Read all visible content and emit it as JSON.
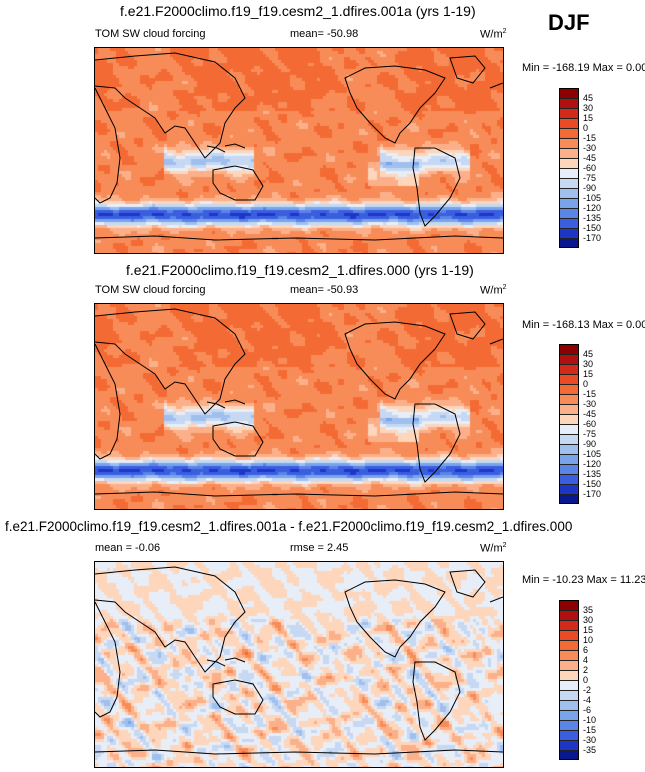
{
  "season": "DJF",
  "panels": [
    {
      "title": "f.e21.F2000climo.f19_f19.cesm2_1.dfires.001a (yrs 1-19)",
      "left_label": "TOM SW cloud forcing",
      "mean_label": "mean= -50.98",
      "units_base": "W/m",
      "units_exp": "2",
      "minmax": "Min = -168.19 Max =   0.00",
      "colorbar": {
        "ticks": [
          "45",
          "30",
          "15",
          "0",
          "-15",
          "-30",
          "-45",
          "-60",
          "-75",
          "-90",
          "-105",
          "-120",
          "-135",
          "-150",
          "-170"
        ],
        "colors": [
          "#8b0000",
          "#b01010",
          "#d42a1a",
          "#ea4a24",
          "#f46a34",
          "#f88c58",
          "#fbb08a",
          "#fdd6bc",
          "#e8eef8",
          "#c6d8f2",
          "#9fbfee",
          "#7aa4ea",
          "#5a84e6",
          "#3a5ee0",
          "#1e36c8",
          "#0a1890"
        ]
      },
      "field": "full"
    },
    {
      "title": "f.e21.F2000climo.f19_f19.cesm2_1.dfires.000 (yrs 1-19)",
      "left_label": "TOM SW cloud forcing",
      "mean_label": "mean= -50.93",
      "units_base": "W/m",
      "units_exp": "2",
      "minmax": "Min = -168.13 Max =   0.00",
      "colorbar": {
        "ticks": [
          "45",
          "30",
          "15",
          "0",
          "-15",
          "-30",
          "-45",
          "-60",
          "-75",
          "-90",
          "-105",
          "-120",
          "-135",
          "-150",
          "-170"
        ],
        "colors": [
          "#8b0000",
          "#b01010",
          "#d42a1a",
          "#ea4a24",
          "#f46a34",
          "#f88c58",
          "#fbb08a",
          "#fdd6bc",
          "#e8eef8",
          "#c6d8f2",
          "#9fbfee",
          "#7aa4ea",
          "#5a84e6",
          "#3a5ee0",
          "#1e36c8",
          "#0a1890"
        ]
      },
      "field": "full"
    },
    {
      "title": "f.e21.F2000climo.f19_f19.cesm2_1.dfires.001a - f.e21.F2000climo.f19_f19.cesm2_1.dfires.000",
      "left_label": "mean =  -0.06",
      "mean_label": "rmse =   2.45",
      "units_base": "W/m",
      "units_exp": "2",
      "minmax": "Min = -10.23 Max =  11.23",
      "colorbar": {
        "ticks": [
          "35",
          "30",
          "15",
          "10",
          "6",
          "4",
          "2",
          "0",
          "-2",
          "-4",
          "-6",
          "-10",
          "-15",
          "-30",
          "-35"
        ],
        "colors": [
          "#8b0000",
          "#b01010",
          "#d42a1a",
          "#ea4a24",
          "#f46a34",
          "#f88c58",
          "#fbb08a",
          "#fdd6bc",
          "#e8eef8",
          "#c6d8f2",
          "#9fbfee",
          "#7aa4ea",
          "#5a84e6",
          "#3a5ee0",
          "#1e36c8",
          "#0a1890"
        ]
      },
      "field": "diff"
    }
  ],
  "chart_data": [
    {
      "type": "heatmap",
      "title": "f.e21.F2000climo.f19_f19.cesm2_1.dfires.001a (yrs 1-19)",
      "variable": "TOM SW cloud forcing",
      "units": "W/m2",
      "season": "DJF",
      "mean": -50.98,
      "min": -168.19,
      "max": 0.0,
      "levels": [
        -170,
        -150,
        -135,
        -120,
        -105,
        -90,
        -75,
        -60,
        -45,
        -30,
        -15,
        0,
        15,
        30,
        45
      ]
    },
    {
      "type": "heatmap",
      "title": "f.e21.F2000climo.f19_f19.cesm2_1.dfires.000 (yrs 1-19)",
      "variable": "TOM SW cloud forcing",
      "units": "W/m2",
      "season": "DJF",
      "mean": -50.93,
      "min": -168.13,
      "max": 0.0,
      "levels": [
        -170,
        -150,
        -135,
        -120,
        -105,
        -90,
        -75,
        -60,
        -45,
        -30,
        -15,
        0,
        15,
        30,
        45
      ]
    },
    {
      "type": "heatmap",
      "title": "f.e21.F2000climo.f19_f19.cesm2_1.dfires.001a - f.e21.F2000climo.f19_f19.cesm2_1.dfires.000",
      "units": "W/m2",
      "season": "DJF",
      "mean": -0.06,
      "rmse": 2.45,
      "min": -10.23,
      "max": 11.23,
      "levels": [
        -35,
        -30,
        -15,
        -10,
        -6,
        -4,
        -2,
        0,
        2,
        4,
        6,
        10,
        15,
        30,
        35
      ]
    }
  ]
}
